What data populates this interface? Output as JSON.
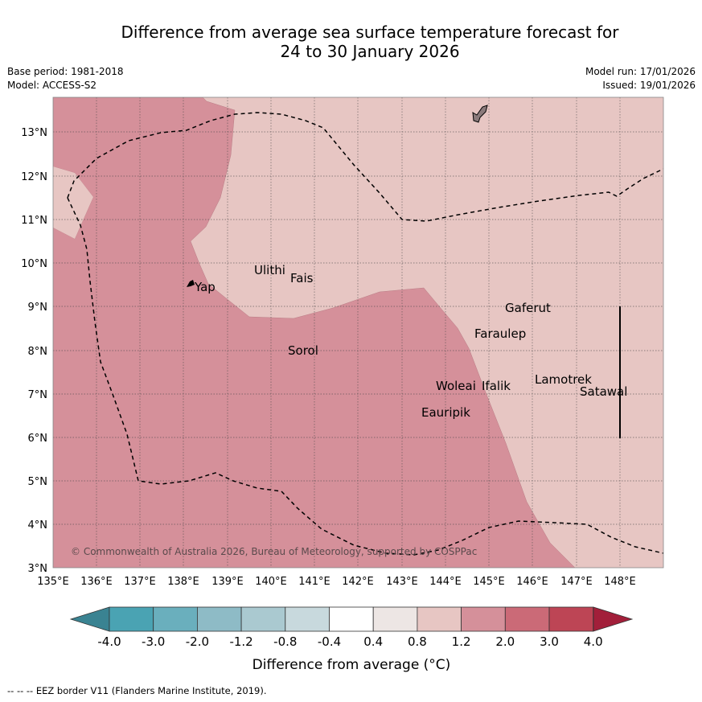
{
  "title": {
    "line1": "Difference from average sea surface temperature forecast for",
    "line2": "24 to 30 January 2026"
  },
  "meta": {
    "base_period": "Base period: 1981-2018",
    "model": "Model: ACCESS-S2",
    "model_run": "Model run: 17/01/2026",
    "issued": "Issued: 19/01/2026"
  },
  "map": {
    "lon_labels": [
      "135°E",
      "136°E",
      "137°E",
      "138°E",
      "139°E",
      "140°E",
      "141°E",
      "142°E",
      "143°E",
      "144°E",
      "145°E",
      "146°E",
      "147°E",
      "148°E"
    ],
    "lat_labels": [
      "3°N",
      "4°N",
      "5°N",
      "6°N",
      "7°N",
      "8°N",
      "9°N",
      "10°N",
      "11°N",
      "12°N",
      "13°N"
    ],
    "places": [
      "Ulithi",
      "Fais",
      "Yap",
      "Gaferut",
      "Faraulep",
      "Sorol",
      "Lamotrek",
      "Woleai",
      "Ifalik",
      "Satawal",
      "Eauripik"
    ],
    "copyright": "© Commonwealth of Australia 2026, Bureau of Meteorology, supported by COSPPac"
  },
  "colorbar": {
    "ticks": [
      "-4.0",
      "-3.0",
      "-2.0",
      "-1.2",
      "-0.8",
      "-0.4",
      "0.4",
      "0.8",
      "1.2",
      "2.0",
      "3.0",
      "4.0"
    ],
    "colors": [
      "#4aa3b3",
      "#6aafbd",
      "#8ebbc6",
      "#aac9d0",
      "#c8d9dd",
      "#ffffff",
      "#ede6e4",
      "#e7c6c3",
      "#d5909a",
      "#cb6a77",
      "#bd4555"
    ],
    "under_color": "#3a8392",
    "over_color": "#a21f3a",
    "label": "Difference from average (°C)"
  },
  "legend": {
    "eez": "--  --  -- EEZ border V11 (Flanders Marine Institute, 2019)."
  }
}
